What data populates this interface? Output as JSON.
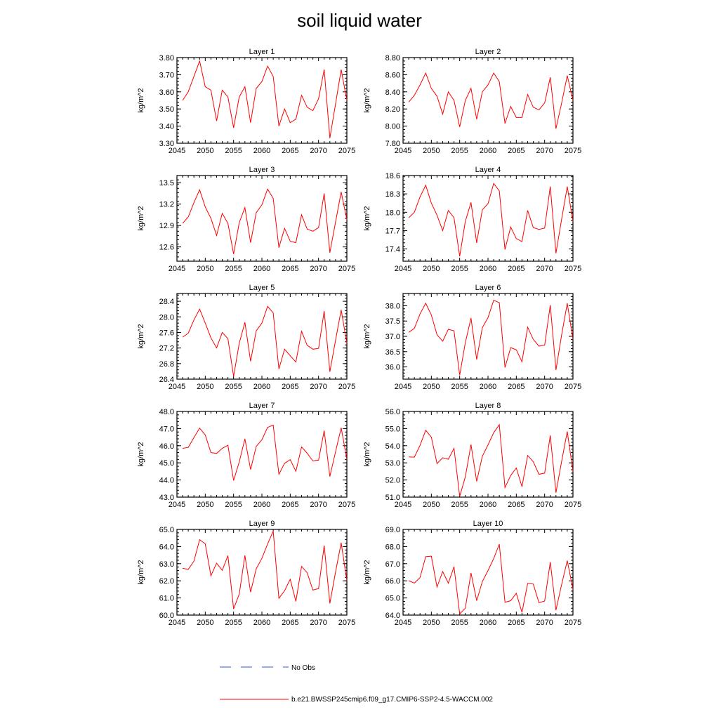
{
  "title": "soil liquid water",
  "legend": {
    "obs_label": "No Obs",
    "obs_color": "#3355cc",
    "model_label": "b.e21.BWSSP245cmip6.f09_g17.CMIP6-SSP2-4.5-WACCM.002",
    "model_color": "#ff0000"
  },
  "chart_data": [
    {
      "type": "line",
      "title": "Layer 1",
      "ylabel": "kg/m^2",
      "xlim": [
        2045,
        2075
      ],
      "ylim": [
        3.3,
        3.8
      ],
      "xticks": [
        2045,
        2050,
        2055,
        2060,
        2065,
        2070,
        2075
      ],
      "yticks": [
        "3.30",
        "3.40",
        "3.50",
        "3.60",
        "3.70",
        "3.80"
      ],
      "x": [
        2046,
        2047,
        2048,
        2049,
        2050,
        2051,
        2052,
        2053,
        2054,
        2055,
        2056,
        2057,
        2058,
        2059,
        2060,
        2061,
        2062,
        2063,
        2064,
        2065,
        2066,
        2067,
        2068,
        2069,
        2070,
        2071,
        2072,
        2073,
        2074,
        2075
      ],
      "series": [
        {
          "values": [
            3.55,
            3.6,
            3.69,
            3.78,
            3.63,
            3.61,
            3.43,
            3.61,
            3.57,
            3.39,
            3.57,
            3.63,
            3.42,
            3.62,
            3.66,
            3.75,
            3.69,
            3.4,
            3.5,
            3.42,
            3.44,
            3.58,
            3.51,
            3.49,
            3.56,
            3.73,
            3.33,
            3.53,
            3.73,
            3.55
          ]
        }
      ]
    },
    {
      "type": "line",
      "title": "Layer 2",
      "ylabel": "kg/m^2",
      "xlim": [
        2045,
        2075
      ],
      "ylim": [
        7.8,
        8.8
      ],
      "xticks": [
        2045,
        2050,
        2055,
        2060,
        2065,
        2070,
        2075
      ],
      "yticks": [
        "7.80",
        "8.00",
        "8.20",
        "8.40",
        "8.60",
        "8.80"
      ],
      "x": [
        2046,
        2047,
        2048,
        2049,
        2050,
        2051,
        2052,
        2053,
        2054,
        2055,
        2056,
        2057,
        2058,
        2059,
        2060,
        2061,
        2062,
        2063,
        2064,
        2065,
        2066,
        2067,
        2068,
        2069,
        2070,
        2071,
        2072,
        2073,
        2074,
        2075
      ],
      "series": [
        {
          "values": [
            8.28,
            8.36,
            8.48,
            8.62,
            8.44,
            8.35,
            8.14,
            8.4,
            8.3,
            7.99,
            8.3,
            8.44,
            8.08,
            8.4,
            8.48,
            8.62,
            8.52,
            8.03,
            8.23,
            8.1,
            8.1,
            8.37,
            8.22,
            8.19,
            8.27,
            8.57,
            7.97,
            8.27,
            8.59,
            8.3
          ]
        }
      ]
    },
    {
      "type": "line",
      "title": "Layer 3",
      "ylabel": "kg/m^2",
      "xlim": [
        2045,
        2075
      ],
      "ylim": [
        12.4,
        13.6
      ],
      "xticks": [
        2045,
        2050,
        2055,
        2060,
        2065,
        2070,
        2075
      ],
      "yticks": [
        "12.6",
        "12.9",
        "13.2",
        "13.5"
      ],
      "x": [
        2046,
        2047,
        2048,
        2049,
        2050,
        2051,
        2052,
        2053,
        2054,
        2055,
        2056,
        2057,
        2058,
        2059,
        2060,
        2061,
        2062,
        2063,
        2064,
        2065,
        2066,
        2067,
        2068,
        2069,
        2070,
        2071,
        2072,
        2073,
        2074,
        2075
      ],
      "series": [
        {
          "values": [
            12.93,
            13.02,
            13.22,
            13.4,
            13.16,
            13.0,
            12.76,
            13.07,
            12.93,
            12.5,
            12.94,
            13.15,
            12.66,
            13.08,
            13.19,
            13.41,
            13.28,
            12.59,
            12.86,
            12.68,
            12.66,
            13.05,
            12.85,
            12.82,
            12.87,
            13.35,
            12.52,
            12.95,
            13.37,
            12.98
          ]
        }
      ]
    },
    {
      "type": "line",
      "title": "Layer 4",
      "ylabel": "kg/m^2",
      "xlim": [
        2045,
        2075
      ],
      "ylim": [
        17.2,
        18.6
      ],
      "xticks": [
        2045,
        2050,
        2055,
        2060,
        2065,
        2070,
        2075
      ],
      "yticks": [
        "17.4",
        "17.7",
        "18.0",
        "18.3",
        "18.6"
      ],
      "x": [
        2046,
        2047,
        2048,
        2049,
        2050,
        2051,
        2052,
        2053,
        2054,
        2055,
        2056,
        2057,
        2058,
        2059,
        2060,
        2061,
        2062,
        2063,
        2064,
        2065,
        2066,
        2067,
        2068,
        2069,
        2070,
        2071,
        2072,
        2073,
        2074,
        2075
      ],
      "series": [
        {
          "values": [
            17.91,
            18.0,
            18.25,
            18.44,
            18.15,
            17.95,
            17.7,
            18.03,
            17.91,
            17.28,
            17.85,
            18.16,
            17.5,
            18.04,
            18.14,
            18.47,
            18.35,
            17.39,
            17.76,
            17.57,
            17.52,
            18.03,
            17.75,
            17.72,
            17.74,
            18.42,
            17.33,
            17.89,
            18.42,
            17.85
          ]
        }
      ]
    },
    {
      "type": "line",
      "title": "Layer 5",
      "ylabel": "kg/m^2",
      "xlim": [
        2045,
        2075
      ],
      "ylim": [
        26.4,
        28.6
      ],
      "xticks": [
        2045,
        2050,
        2055,
        2060,
        2065,
        2070,
        2075
      ],
      "yticks": [
        "26.4",
        "26.8",
        "27.2",
        "27.6",
        "28.0",
        "28.4"
      ],
      "x": [
        2046,
        2047,
        2048,
        2049,
        2050,
        2051,
        2052,
        2053,
        2054,
        2055,
        2056,
        2057,
        2058,
        2059,
        2060,
        2061,
        2062,
        2063,
        2064,
        2065,
        2066,
        2067,
        2068,
        2069,
        2070,
        2071,
        2072,
        2073,
        2074,
        2075
      ],
      "series": [
        {
          "values": [
            27.48,
            27.58,
            27.92,
            28.2,
            27.84,
            27.46,
            27.2,
            27.6,
            27.44,
            26.47,
            27.32,
            27.86,
            26.86,
            27.64,
            27.84,
            28.27,
            28.1,
            26.66,
            27.17,
            27.0,
            26.84,
            27.63,
            27.27,
            27.17,
            27.19,
            28.15,
            26.59,
            27.4,
            28.18,
            27.32
          ]
        }
      ]
    },
    {
      "type": "line",
      "title": "Layer 6",
      "ylabel": "kg/m^2",
      "xlim": [
        2045,
        2075
      ],
      "ylim": [
        35.6,
        38.4
      ],
      "xticks": [
        2045,
        2050,
        2055,
        2060,
        2065,
        2070,
        2075
      ],
      "yticks": [
        "36.0",
        "36.5",
        "37.0",
        "37.5",
        "38.0"
      ],
      "x": [
        2046,
        2047,
        2048,
        2049,
        2050,
        2051,
        2052,
        2053,
        2054,
        2055,
        2056,
        2057,
        2058,
        2059,
        2060,
        2061,
        2062,
        2063,
        2064,
        2065,
        2066,
        2067,
        2068,
        2069,
        2070,
        2071,
        2072,
        2073,
        2074,
        2075
      ],
      "series": [
        {
          "values": [
            37.13,
            37.26,
            37.73,
            38.08,
            37.7,
            37.05,
            36.84,
            37.23,
            37.18,
            35.73,
            36.79,
            37.6,
            36.24,
            37.28,
            37.61,
            38.18,
            38.1,
            35.98,
            36.63,
            36.56,
            36.17,
            37.3,
            36.9,
            36.68,
            36.71,
            38.02,
            35.9,
            37.05,
            38.08,
            36.9
          ]
        }
      ]
    },
    {
      "type": "line",
      "title": "Layer 7",
      "ylabel": "kg/m^2",
      "xlim": [
        2045,
        2075
      ],
      "ylim": [
        43.0,
        48.0
      ],
      "xticks": [
        2045,
        2050,
        2055,
        2060,
        2065,
        2070,
        2075
      ],
      "yticks": [
        "43.0",
        "44.0",
        "45.0",
        "46.0",
        "47.0",
        "48.0"
      ],
      "x": [
        2046,
        2047,
        2048,
        2049,
        2050,
        2051,
        2052,
        2053,
        2054,
        2055,
        2056,
        2057,
        2058,
        2059,
        2060,
        2061,
        2062,
        2063,
        2064,
        2065,
        2066,
        2067,
        2068,
        2069,
        2070,
        2071,
        2072,
        2073,
        2074,
        2075
      ],
      "series": [
        {
          "values": [
            45.85,
            45.9,
            46.48,
            47.03,
            46.63,
            45.6,
            45.55,
            45.85,
            46.03,
            43.97,
            45.05,
            46.4,
            44.61,
            45.96,
            46.35,
            47.07,
            47.2,
            44.33,
            44.97,
            45.19,
            44.51,
            45.93,
            45.56,
            45.11,
            45.16,
            46.88,
            44.2,
            45.65,
            47.05,
            45.2
          ]
        }
      ]
    },
    {
      "type": "line",
      "title": "Layer 8",
      "ylabel": "kg/m^2",
      "xlim": [
        2045,
        2075
      ],
      "ylim": [
        51.0,
        56.0
      ],
      "xticks": [
        2045,
        2050,
        2055,
        2060,
        2065,
        2070,
        2075
      ],
      "yticks": [
        "51.0",
        "52.0",
        "53.0",
        "54.0",
        "55.0",
        "56.0"
      ],
      "x": [
        2046,
        2047,
        2048,
        2049,
        2050,
        2051,
        2052,
        2053,
        2054,
        2055,
        2056,
        2057,
        2058,
        2059,
        2060,
        2061,
        2062,
        2063,
        2064,
        2065,
        2066,
        2067,
        2068,
        2069,
        2070,
        2071,
        2072,
        2073,
        2074,
        2075
      ],
      "series": [
        {
          "values": [
            53.35,
            53.33,
            54.02,
            54.9,
            54.5,
            52.96,
            53.3,
            53.21,
            53.85,
            51.04,
            52.18,
            54.07,
            51.92,
            53.38,
            54.05,
            54.76,
            55.23,
            51.56,
            52.26,
            52.7,
            51.61,
            53.43,
            53.06,
            52.33,
            52.4,
            54.6,
            51.26,
            53.09,
            54.83,
            52.5
          ]
        }
      ]
    },
    {
      "type": "line",
      "title": "Layer 9",
      "ylabel": "kg/m^2",
      "xlim": [
        2045,
        2075
      ],
      "ylim": [
        60.0,
        65.0
      ],
      "xticks": [
        2045,
        2050,
        2055,
        2060,
        2065,
        2070,
        2075
      ],
      "yticks": [
        "60.0",
        "61.0",
        "62.0",
        "63.0",
        "64.0",
        "65.0"
      ],
      "x": [
        2046,
        2047,
        2048,
        2049,
        2050,
        2051,
        2052,
        2053,
        2054,
        2055,
        2056,
        2057,
        2058,
        2059,
        2060,
        2061,
        2062,
        2063,
        2064,
        2065,
        2066,
        2067,
        2068,
        2069,
        2070,
        2071,
        2072,
        2073,
        2074,
        2075
      ],
      "series": [
        {
          "values": [
            62.73,
            62.67,
            63.15,
            64.4,
            64.16,
            62.3,
            63.03,
            62.61,
            63.47,
            60.36,
            61.22,
            63.48,
            61.34,
            62.7,
            63.31,
            64.15,
            64.9,
            60.98,
            61.42,
            62.09,
            60.8,
            62.84,
            62.47,
            61.46,
            61.55,
            64.06,
            60.68,
            62.52,
            64.22,
            62.0
          ]
        }
      ]
    },
    {
      "type": "line",
      "title": "Layer 10",
      "ylabel": "kg/m^2",
      "xlim": [
        2045,
        2075
      ],
      "ylim": [
        64.0,
        69.0
      ],
      "xticks": [
        2045,
        2050,
        2055,
        2060,
        2065,
        2070,
        2075
      ],
      "yticks": [
        "64.0",
        "65.0",
        "66.0",
        "67.0",
        "68.0",
        "69.0"
      ],
      "x": [
        2046,
        2047,
        2048,
        2049,
        2050,
        2051,
        2052,
        2053,
        2054,
        2055,
        2056,
        2057,
        2058,
        2059,
        2060,
        2061,
        2062,
        2063,
        2064,
        2065,
        2066,
        2067,
        2068,
        2069,
        2070,
        2071,
        2072,
        2073,
        2074,
        2075
      ],
      "series": [
        {
          "values": [
            66.01,
            65.87,
            66.19,
            67.41,
            67.44,
            65.64,
            66.54,
            65.86,
            66.82,
            64.06,
            64.4,
            66.46,
            64.84,
            65.95,
            66.6,
            67.3,
            68.14,
            64.75,
            64.84,
            65.27,
            64.16,
            65.85,
            65.81,
            64.72,
            64.82,
            67.09,
            64.29,
            65.79,
            67.18,
            65.5
          ]
        }
      ]
    }
  ]
}
